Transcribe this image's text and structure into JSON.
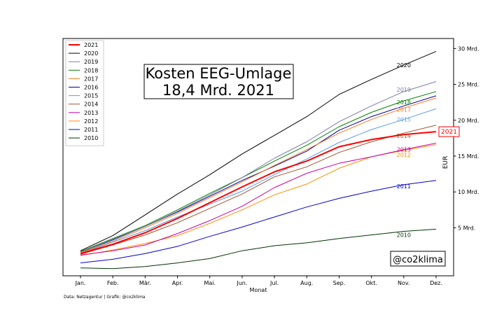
{
  "chart_data": {
    "type": "line",
    "title_line1": "Kosten EEG-Umlage",
    "title_line2": "18,4 Mrd. 2021",
    "xlabel": "Monat",
    "ylabel": "EUR",
    "categories": [
      "Jan.",
      "Feb.",
      "Mär.",
      "Apr.",
      "Mai.",
      "Jun.",
      "Jul.",
      "Aug.",
      "Sep.",
      "Okt.",
      "Nov.",
      "Dez."
    ],
    "yticks": [
      {
        "value": 5,
        "label": "5 Mrd."
      },
      {
        "value": 10,
        "label": "10 Mrd."
      },
      {
        "value": 15,
        "label": "15 Mrd."
      },
      {
        "value": 20,
        "label": "20 Mrd."
      },
      {
        "value": 25,
        "label": "25 Mrd."
      },
      {
        "value": 30,
        "label": "30 Mrd."
      }
    ],
    "ylim": [
      -1.7,
      31.4
    ],
    "legend_position": "top-left",
    "grid": false,
    "source": "Data: Netzagentur | Grafik: @co2klima",
    "watermark": "@co2klima",
    "end_badge": {
      "label": "2021",
      "value": 18.4,
      "color": "#ff0000"
    },
    "series": [
      {
        "name": "2021",
        "color": "#ff0000",
        "width": 2,
        "end_label": "",
        "values": [
          1.4,
          2.7,
          4.3,
          6.3,
          8.5,
          10.7,
          12.8,
          14.3,
          16.3,
          17.3,
          18.0,
          18.4
        ]
      },
      {
        "name": "2020",
        "color": "#000000",
        "width": 1,
        "end_label": "2020",
        "values": [
          1.8,
          3.9,
          6.8,
          9.7,
          12.4,
          15.3,
          17.9,
          20.5,
          23.6,
          25.7,
          27.7,
          29.6
        ]
      },
      {
        "name": "2019",
        "color": "#7a7aa8",
        "width": 1,
        "end_label": "2019",
        "values": [
          1.6,
          3.4,
          5.2,
          7.3,
          9.6,
          12.0,
          14.7,
          17.0,
          19.8,
          22.0,
          24.0,
          25.4
        ]
      },
      {
        "name": "2018",
        "color": "#008000",
        "width": 1,
        "end_label": "2018",
        "values": [
          1.7,
          3.5,
          5.3,
          7.5,
          9.8,
          12.0,
          14.3,
          16.5,
          19.1,
          21.1,
          22.7,
          24.0
        ]
      },
      {
        "name": "2017",
        "color": "#f47920",
        "width": 1,
        "end_label": "2017",
        "values": [
          1.5,
          3.1,
          5.0,
          7.0,
          9.2,
          11.4,
          13.7,
          15.9,
          18.2,
          20.1,
          21.7,
          23.1
        ]
      },
      {
        "name": "2016",
        "color": "#00008b",
        "width": 1,
        "end_label": "",
        "values": [
          1.6,
          3.3,
          5.2,
          7.2,
          9.4,
          11.6,
          13.6,
          15.7,
          18.6,
          20.5,
          22.0,
          23.4
        ]
      },
      {
        "name": "2015",
        "color": "#5c9ee6",
        "width": 1,
        "end_label": "2015",
        "values": [
          1.4,
          3.0,
          4.6,
          6.5,
          8.3,
          10.1,
          12.4,
          14.6,
          16.9,
          18.7,
          20.1,
          21.6
        ]
      },
      {
        "name": "2014",
        "color": "#a0522d",
        "width": 1,
        "end_label": "2014",
        "values": [
          1.3,
          2.6,
          4.0,
          5.7,
          7.7,
          9.7,
          12.1,
          13.5,
          15.5,
          17.0,
          18.2,
          19.3
        ]
      },
      {
        "name": "2013",
        "color": "#c800a0",
        "width": 1,
        "end_label": "2013",
        "values": [
          1.2,
          1.8,
          2.6,
          4.2,
          6.0,
          8.0,
          10.6,
          12.6,
          14.0,
          14.9,
          15.9,
          16.8
        ]
      },
      {
        "name": "2012",
        "color": "#ff8c00",
        "width": 1,
        "end_label": "2012",
        "values": [
          1.1,
          1.9,
          2.8,
          3.9,
          5.6,
          7.5,
          9.6,
          11.1,
          13.3,
          14.9,
          15.8,
          16.6
        ]
      },
      {
        "name": "2011",
        "color": "#0000cd",
        "width": 1,
        "end_label": "2011",
        "values": [
          0.1,
          0.6,
          1.4,
          2.4,
          3.8,
          5.1,
          6.5,
          7.9,
          9.1,
          10.1,
          11.0,
          11.6
        ]
      },
      {
        "name": "2010",
        "color": "#003300",
        "width": 1,
        "end_label": "2010",
        "values": [
          -0.6,
          -0.7,
          -0.4,
          0.1,
          0.7,
          1.8,
          2.5,
          2.9,
          3.5,
          4.0,
          4.5,
          4.8
        ]
      }
    ]
  }
}
